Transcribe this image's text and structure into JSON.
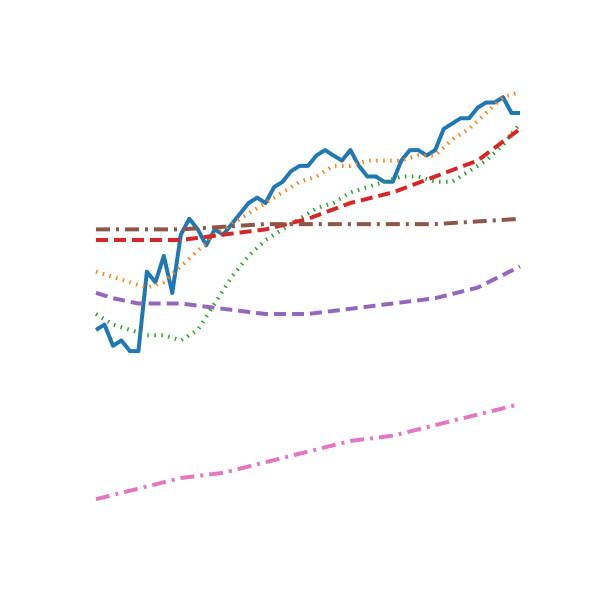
{
  "chart_data": {
    "type": "line",
    "title": "",
    "xlabel": "",
    "ylabel": "",
    "axes_visible": false,
    "grid": false,
    "legend": "none",
    "xlim": [
      0,
      50
    ],
    "ylim": [
      0,
      100
    ],
    "series": [
      {
        "color": "#1f77b4",
        "style": "solid",
        "x": [
          0,
          1,
          2,
          3,
          4,
          5,
          6,
          7,
          8,
          9,
          10,
          11,
          12,
          13,
          14,
          15,
          16,
          17,
          18,
          19,
          20,
          21,
          22,
          23,
          24,
          25,
          26,
          27,
          28,
          29,
          30,
          31,
          32,
          33,
          34,
          35,
          36,
          37,
          38,
          39,
          40,
          41,
          42,
          43,
          44,
          45,
          46,
          47,
          48,
          49,
          50
        ],
        "values": [
          52,
          53,
          49,
          50,
          48,
          48,
          63,
          61,
          66,
          59,
          70,
          73,
          71,
          68,
          71,
          70,
          72,
          74,
          76,
          77,
          76,
          79,
          80,
          82,
          83,
          83,
          85,
          86,
          85,
          84,
          86,
          83,
          81,
          81,
          80,
          80,
          84,
          86,
          86,
          85,
          86,
          90,
          91,
          92,
          92,
          94,
          95,
          95,
          96,
          93,
          93
        ]
      },
      {
        "color": "#ff7f0e",
        "style": "dotted",
        "x": [
          0,
          4,
          6,
          8,
          10,
          12,
          14,
          16,
          18,
          20,
          22,
          24,
          26,
          28,
          30,
          32,
          34,
          36,
          38,
          40,
          42,
          44,
          46,
          48,
          50
        ],
        "values": [
          63,
          61,
          60,
          61,
          64,
          67,
          70,
          72,
          74,
          76,
          78,
          80,
          81,
          83,
          83,
          84,
          84,
          84,
          85,
          85,
          88,
          90,
          93,
          96,
          97
        ]
      },
      {
        "color": "#2ca02c",
        "style": "dotted",
        "x": [
          0,
          2,
          4,
          6,
          8,
          10,
          12,
          14,
          16,
          18,
          20,
          22,
          24,
          26,
          28,
          30,
          32,
          34,
          36,
          38,
          40,
          42,
          44,
          46,
          48,
          50
        ],
        "values": [
          55,
          53,
          52,
          51,
          51,
          50,
          52,
          57,
          62,
          66,
          69,
          71,
          73,
          75,
          76,
          78,
          79,
          80,
          81,
          81,
          80,
          80,
          82,
          84,
          87,
          91
        ]
      },
      {
        "color": "#d62728",
        "style": "dashed",
        "x": [
          0,
          5,
          10,
          15,
          20,
          25,
          30,
          35,
          40,
          45,
          50
        ],
        "values": [
          69,
          69,
          69,
          70,
          71,
          73,
          76,
          78,
          81,
          84,
          90
        ]
      },
      {
        "color": "#9467bd",
        "style": "dashed",
        "x": [
          0,
          2,
          5,
          10,
          15,
          20,
          25,
          30,
          35,
          40,
          45,
          50
        ],
        "values": [
          59,
          58,
          57,
          57,
          56,
          55,
          55,
          56,
          57,
          58,
          60,
          64
        ]
      },
      {
        "color": "#8c564b",
        "style": "dashdot",
        "x": [
          0,
          10,
          20,
          30,
          40,
          50
        ],
        "values": [
          71,
          71,
          72,
          72,
          72,
          73
        ]
      },
      {
        "color": "#e377c2",
        "style": "dashdot",
        "x": [
          0,
          5,
          10,
          15,
          20,
          25,
          30,
          35,
          40,
          45,
          50
        ],
        "values": [
          20,
          22,
          24,
          25,
          27,
          29,
          31,
          32,
          34,
          36,
          38
        ]
      }
    ]
  }
}
